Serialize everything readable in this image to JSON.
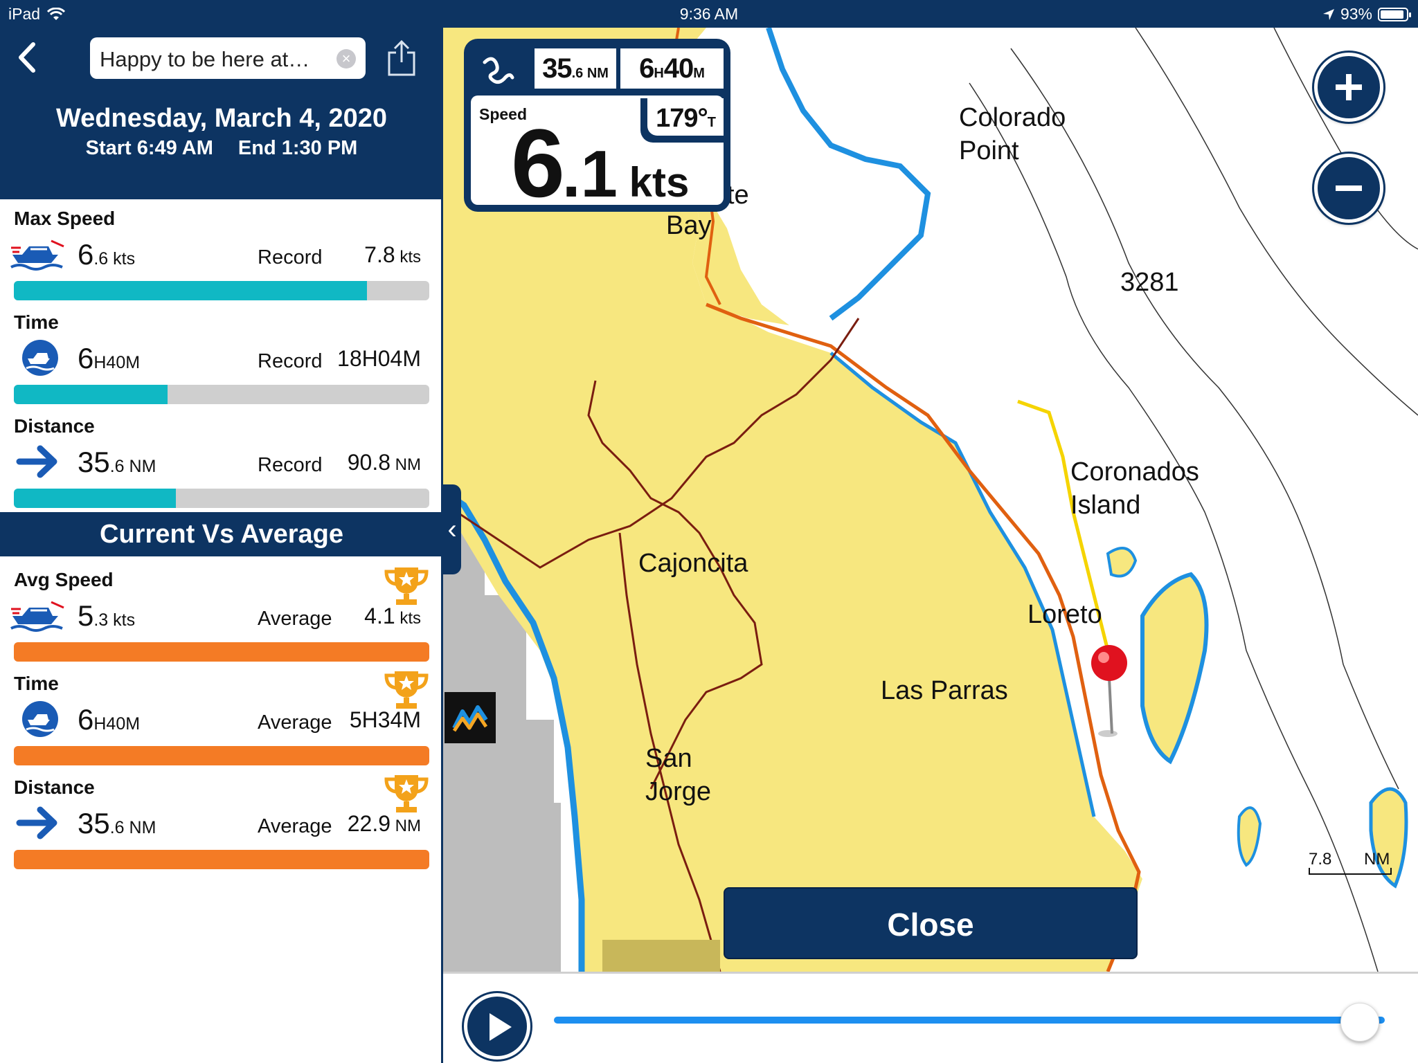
{
  "status_bar": {
    "device": "iPad",
    "time": "9:36 AM",
    "battery": "93%"
  },
  "nav": {
    "title_field_value": "Happy to be here at…",
    "icons": [
      "back-chevron-icon",
      "clear-icon",
      "share-icon"
    ]
  },
  "trip": {
    "date": "Wednesday, March 4, 2020",
    "start": "Start 6:49 AM",
    "end": "End 1:30 PM"
  },
  "stats": [
    {
      "label": "Max Speed",
      "icon": "boat-speed-icon",
      "value_main": "6",
      "value_dec": ".6",
      "value_unit": " kts",
      "compare_label": "Record",
      "compare_main": "7.8",
      "compare_unit": " kts",
      "progress": 0.85,
      "bar_color": "#10b8c4"
    },
    {
      "label": "Time",
      "icon": "boat-clock-icon",
      "value_main": "6",
      "value_dec": "H",
      "value_unit": "40M",
      "compare_label": "Record",
      "compare_main": "18H04M",
      "compare_unit": "",
      "progress": 0.37,
      "bar_color": "#10b8c4"
    },
    {
      "label": "Distance",
      "icon": "arrow-right-icon",
      "value_main": "35",
      "value_dec": ".6",
      "value_unit": " NM",
      "compare_label": "Record",
      "compare_main": "90.8",
      "compare_unit": " NM",
      "progress": 0.39,
      "bar_color": "#10b8c4"
    }
  ],
  "section_title": "Current Vs Average",
  "avg_stats": [
    {
      "label": "Avg Speed",
      "icon": "boat-speed-icon",
      "value_main": "5",
      "value_dec": ".3",
      "value_unit": " kts",
      "compare_label": "Average",
      "compare_main": "4.1",
      "compare_unit": " kts",
      "progress": 1.0,
      "bar_color": "#f47b25",
      "trophy": "trophy-icon"
    },
    {
      "label": "Time",
      "icon": "boat-clock-icon",
      "value_main": "6",
      "value_dec": "H",
      "value_unit": "40M",
      "compare_label": "Average",
      "compare_main": "5H34M",
      "compare_unit": "",
      "progress": 1.0,
      "bar_color": "#f47b25",
      "trophy": "trophy-icon"
    },
    {
      "label": "Distance",
      "icon": "arrow-right-icon",
      "value_main": "35",
      "value_dec": ".6",
      "value_unit": " NM",
      "compare_label": "Average",
      "compare_main": "22.9",
      "compare_unit": " NM",
      "progress": 1.0,
      "bar_color": "#f47b25",
      "trophy": "trophy-icon"
    }
  ],
  "speed_box": {
    "distance_main": "35",
    "distance_dec": ".6",
    "distance_unit": "NM",
    "time_h": "6",
    "time_h_unit": "H",
    "time_m": "40",
    "time_m_unit": "M",
    "speed_label": "Speed",
    "heading_value": "179°",
    "heading_unit": "T",
    "speed_main": "6",
    "speed_dec": ".1",
    "speed_unit": " kts"
  },
  "map_labels": {
    "colorado": "Colorado",
    "point": "Point",
    "bay_fragment": "te",
    "bay": "Bay",
    "depth": "3281",
    "coronados": "Coronados",
    "island": "Island",
    "cajoncita": "Cajoncita",
    "loreto": "Loreto",
    "las_parras": "Las Parras",
    "san": "San",
    "jorge": "Jorge",
    "scale_value": "7.8",
    "scale_unit": "NM"
  },
  "close_label": "Close",
  "colors": {
    "navy": "#0d3462",
    "teal": "#10b8c4",
    "orange": "#f47b25",
    "land": "#f7e77f",
    "water_edge": "#1e90e0",
    "track": "#f5d400",
    "pin": "#e0121f"
  },
  "playback": {
    "progress": 0.97
  }
}
